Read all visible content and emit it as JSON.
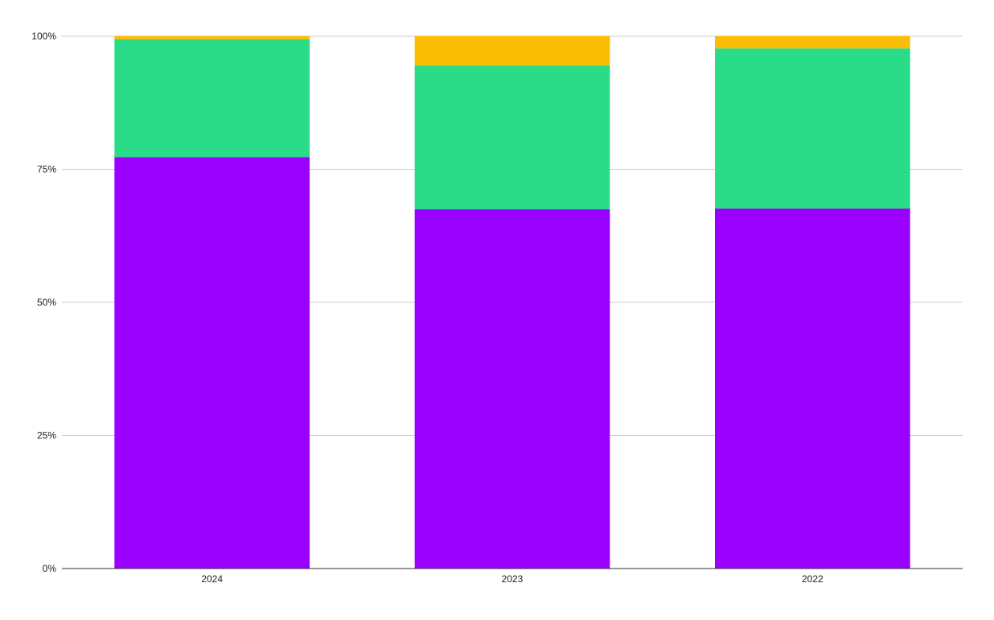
{
  "chart_data": {
    "type": "bar",
    "stacking": "percent",
    "categories": [
      "2024",
      "2023",
      "2022"
    ],
    "series": [
      {
        "color": "#9900ff",
        "values": [
          77.3,
          67.5,
          67.6
        ]
      },
      {
        "color": "#2adc88",
        "values": [
          22.1,
          27.0,
          30.1
        ]
      },
      {
        "color": "#fbbc04",
        "values": [
          0.6,
          5.5,
          2.3
        ]
      }
    ],
    "ylim": [
      0,
      100
    ],
    "yticks": [
      0,
      25,
      50,
      75,
      100
    ],
    "ytick_labels": [
      "0%",
      "25%",
      "50%",
      "75%",
      "100%"
    ],
    "grid": true,
    "legend": "none",
    "colors": {
      "grid": "#cccccc",
      "axis": "#333333",
      "background": "#ffffff"
    }
  }
}
